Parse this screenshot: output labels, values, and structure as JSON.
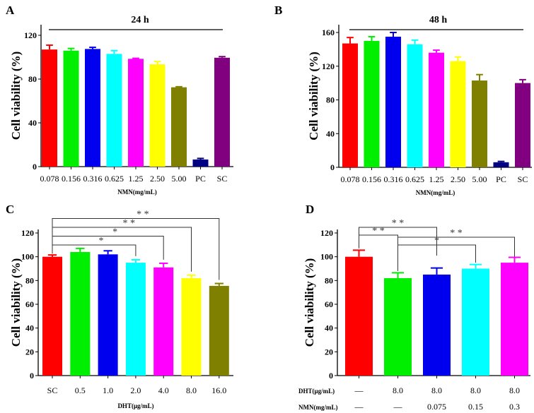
{
  "chart_data": [
    {
      "panel": "A",
      "type": "bar",
      "title": "24 h",
      "xlabel": "NMN(mg/mL)",
      "ylabel": "Cell viability (%)",
      "ylim": [
        0,
        130
      ],
      "yticks": [
        0,
        40,
        80,
        120
      ],
      "categories": [
        "0.078",
        "0.156",
        "0.316",
        "0.625",
        "1.25",
        "2.50",
        "5.00",
        "PC",
        "SC"
      ],
      "values": [
        107,
        106,
        107.5,
        103,
        98.5,
        93.5,
        72.5,
        6.5,
        99.5
      ],
      "errors": [
        4,
        2,
        1.5,
        3,
        0.5,
        2.5,
        0.5,
        1,
        1
      ],
      "colors": [
        "#ff0000",
        "#00ee00",
        "#0000ee",
        "#00ffff",
        "#ff00ff",
        "#ffff00",
        "#808000",
        "#000080",
        "#800080"
      ],
      "significance": []
    },
    {
      "panel": "B",
      "type": "bar",
      "title": "48 h",
      "xlabel": "NMN(mg/mL)",
      "ylabel": "Cell viability (%)",
      "ylim": [
        0,
        170
      ],
      "yticks": [
        0,
        40,
        80,
        120,
        160
      ],
      "categories": [
        "0.078",
        "0.156",
        "0.316",
        "0.625",
        "1.25",
        "2.50",
        "5.00",
        "PC",
        "SC"
      ],
      "values": [
        147,
        150,
        155,
        146,
        136,
        126,
        103,
        6,
        100
      ],
      "errors": [
        7,
        5,
        5,
        5,
        3,
        5,
        7,
        1,
        4
      ],
      "colors": [
        "#ff0000",
        "#00ee00",
        "#0000ee",
        "#00ffff",
        "#ff00ff",
        "#ffff00",
        "#808000",
        "#000080",
        "#800080"
      ],
      "significance": []
    },
    {
      "panel": "C",
      "type": "bar",
      "title": "",
      "xlabel": "DHT(μg/mL)",
      "ylabel": "Cell viability (%)",
      "ylim": [
        0,
        120
      ],
      "yticks": [
        0,
        20,
        40,
        60,
        80,
        100,
        120
      ],
      "categories": [
        "SC",
        "0.5",
        "1.0",
        "2.0",
        "4.0",
        "8.0",
        "16.0"
      ],
      "values": [
        100,
        104,
        102,
        95,
        91,
        82,
        75.5
      ],
      "errors": [
        1.5,
        3,
        3,
        2.5,
        3.5,
        2.5,
        2
      ],
      "colors": [
        "#ff0000",
        "#00ee00",
        "#0000ee",
        "#00ffff",
        "#ff00ff",
        "#ffff00",
        "#808000"
      ],
      "significance": [
        {
          "from": 0,
          "to": 3,
          "label": "*"
        },
        {
          "from": 0,
          "to": 4,
          "label": "*"
        },
        {
          "from": 0,
          "to": 5,
          "label": "* *"
        },
        {
          "from": 0,
          "to": 6,
          "label": "* *"
        }
      ]
    },
    {
      "panel": "D",
      "type": "bar",
      "title": "",
      "xlabel": "",
      "ylabel": "Cell viability (%)",
      "ylim": [
        0,
        120
      ],
      "yticks": [
        0,
        20,
        40,
        60,
        80,
        100,
        120
      ],
      "row_labels": [
        {
          "label": "DHT(μg/mL)",
          "values": [
            "—",
            "8.0",
            "8.0",
            "8.0",
            "8.0"
          ]
        },
        {
          "label": "NMN(mg/mL)",
          "values": [
            "—",
            "—",
            "0.075",
            "0.15",
            "0.3"
          ]
        }
      ],
      "values": [
        100,
        82,
        85,
        90,
        95
      ],
      "errors": [
        5.5,
        4.5,
        5.5,
        3.5,
        4.5
      ],
      "colors": [
        "#ff0000",
        "#00ee00",
        "#0000ee",
        "#00ffff",
        "#ff00ff"
      ],
      "significance": [
        {
          "from": 0,
          "to": 1,
          "label": "* *"
        },
        {
          "from": 0,
          "to": 2,
          "label": "* *"
        },
        {
          "from": 1,
          "to": 3,
          "label": "*"
        },
        {
          "from": 1,
          "to": 4,
          "label": "* *"
        }
      ]
    }
  ]
}
